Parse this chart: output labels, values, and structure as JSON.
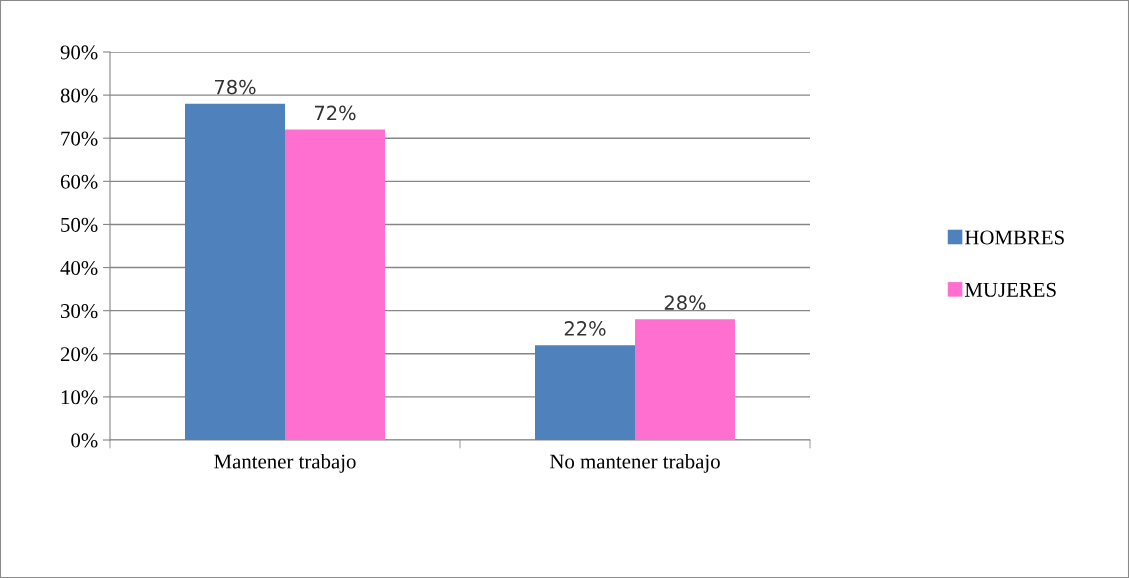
{
  "chart_data": {
    "type": "bar",
    "categories": [
      "Mantener trabajo",
      "No mantener trabajo"
    ],
    "series": [
      {
        "name": "HOMBRES",
        "color": "#4f81bd",
        "values": [
          78,
          22
        ],
        "value_labels": [
          "78%",
          "22%"
        ]
      },
      {
        "name": "MUJERES",
        "color": "#ff6fcf",
        "values": [
          72,
          28
        ],
        "value_labels": [
          "72%",
          "28%"
        ]
      }
    ],
    "ylim": [
      0,
      90
    ],
    "yticks": [
      {
        "value": 0,
        "label": "0%"
      },
      {
        "value": 10,
        "label": "10%"
      },
      {
        "value": 20,
        "label": "20%"
      },
      {
        "value": 30,
        "label": "30%"
      },
      {
        "value": 40,
        "label": "40%"
      },
      {
        "value": 50,
        "label": "50%"
      },
      {
        "value": 60,
        "label": "60%"
      },
      {
        "value": 70,
        "label": "70%"
      },
      {
        "value": 80,
        "label": "80%"
      },
      {
        "value": 90,
        "label": "90%"
      }
    ],
    "grid": "y",
    "legend": "right"
  }
}
